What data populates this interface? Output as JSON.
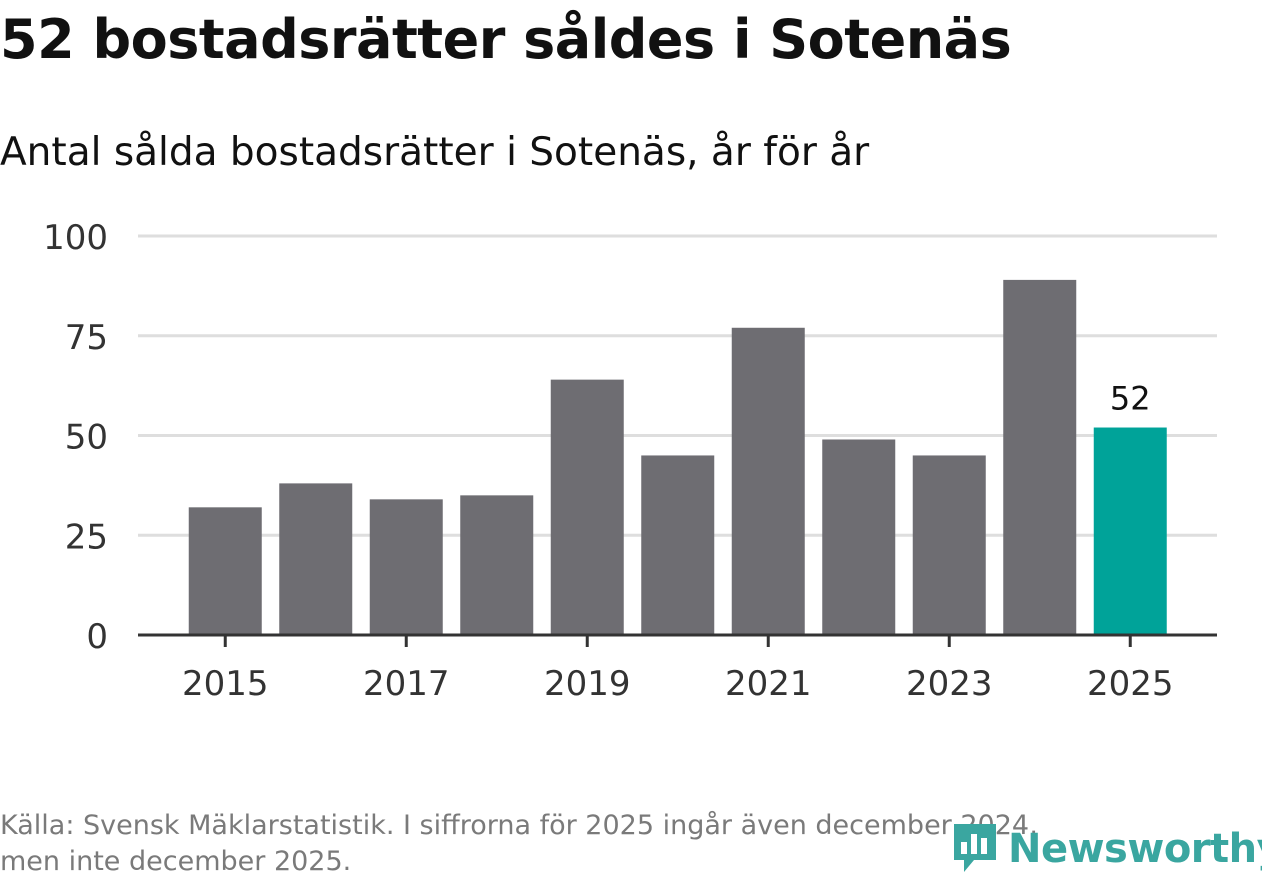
{
  "header": {
    "title": "52 bostadsrätter såldes i Sotenäs",
    "subtitle": "Antal sålda bostadsrätter i Sotenäs, år för år"
  },
  "chart_data": {
    "type": "bar",
    "title": "52 bostadsrätter såldes i Sotenäs",
    "subtitle": "Antal sålda bostadsrätter i Sotenäs, år för år",
    "xlabel": "",
    "ylabel": "",
    "categories": [
      "2015",
      "2016",
      "2017",
      "2018",
      "2019",
      "2020",
      "2021",
      "2022",
      "2023",
      "2024",
      "2025"
    ],
    "values": [
      32,
      38,
      34,
      35,
      64,
      45,
      77,
      49,
      45,
      89,
      52
    ],
    "x_tick_labels": [
      "2015",
      "2017",
      "2019",
      "2021",
      "2023",
      "2025"
    ],
    "y_ticks": [
      0,
      25,
      50,
      75,
      100
    ],
    "ylim": [
      0,
      100
    ],
    "grid": true,
    "highlight_index": 10,
    "highlight_label": "52",
    "colors": {
      "bar": "#6e6d72",
      "highlight": "#00a399",
      "grid": "#dedede",
      "axis": "#333333"
    }
  },
  "footer": {
    "source_line1": "Källa: Svensk Mäklarstatistik. I siffrorna för 2025 ingår även december 2024,",
    "source_line2": "men inte december 2025."
  },
  "logo": {
    "text": "Newsworthy",
    "icon": "newsworthy-logo-icon",
    "color": "#3aa6a0"
  }
}
